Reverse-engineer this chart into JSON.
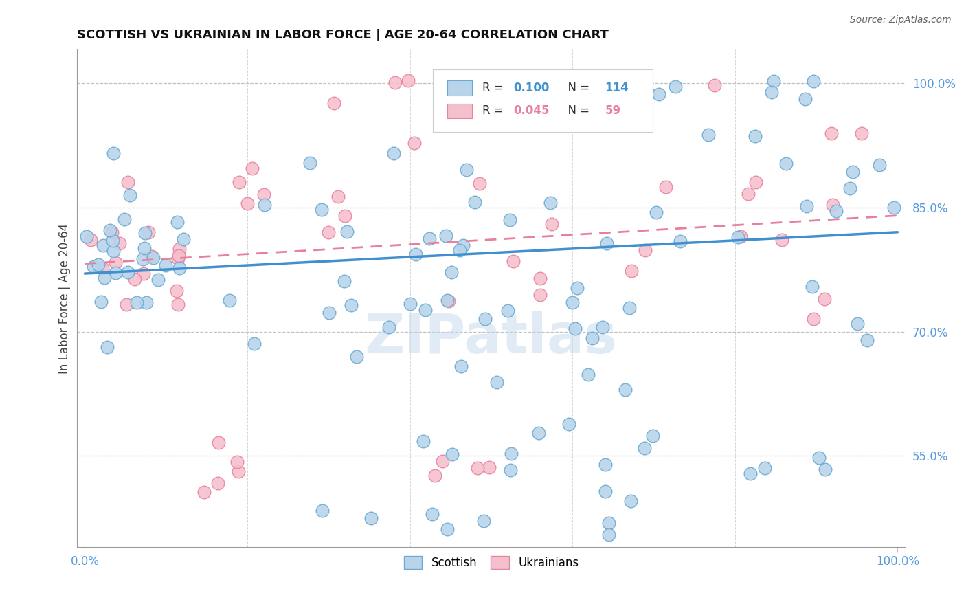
{
  "title": "SCOTTISH VS UKRAINIAN IN LABOR FORCE | AGE 20-64 CORRELATION CHART",
  "source": "Source: ZipAtlas.com",
  "ylabel": "In Labor Force | Age 20-64",
  "y_ticks": [
    0.55,
    0.7,
    0.85,
    1.0
  ],
  "y_tick_labels": [
    "55.0%",
    "70.0%",
    "85.0%",
    "100.0%"
  ],
  "x_ticks": [
    0.0,
    1.0
  ],
  "x_tick_labels": [
    "0.0%",
    "100.0%"
  ],
  "ylim": [
    0.44,
    1.04
  ],
  "xlim": [
    -0.01,
    1.01
  ],
  "watermark": "ZIPatlas",
  "blue_color": "#b8d4ea",
  "blue_edge": "#6aaad4",
  "pink_color": "#f5c0ce",
  "pink_edge": "#e8839e",
  "trendline_blue_color": "#4090d0",
  "trendline_pink_color": "#e87fa0",
  "grid_color": "#bbbbbb",
  "tick_color": "#5599dd",
  "background_color": "#ffffff",
  "legend_R_blue": "0.100",
  "legend_N_blue": "114",
  "legend_R_pink": "0.045",
  "legend_N_pink": "59",
  "blue_trend_x": [
    0.0,
    1.0
  ],
  "blue_trend_y": [
    0.77,
    0.82
  ],
  "pink_trend_x": [
    0.0,
    1.0
  ],
  "pink_trend_y": [
    0.782,
    0.84
  ]
}
